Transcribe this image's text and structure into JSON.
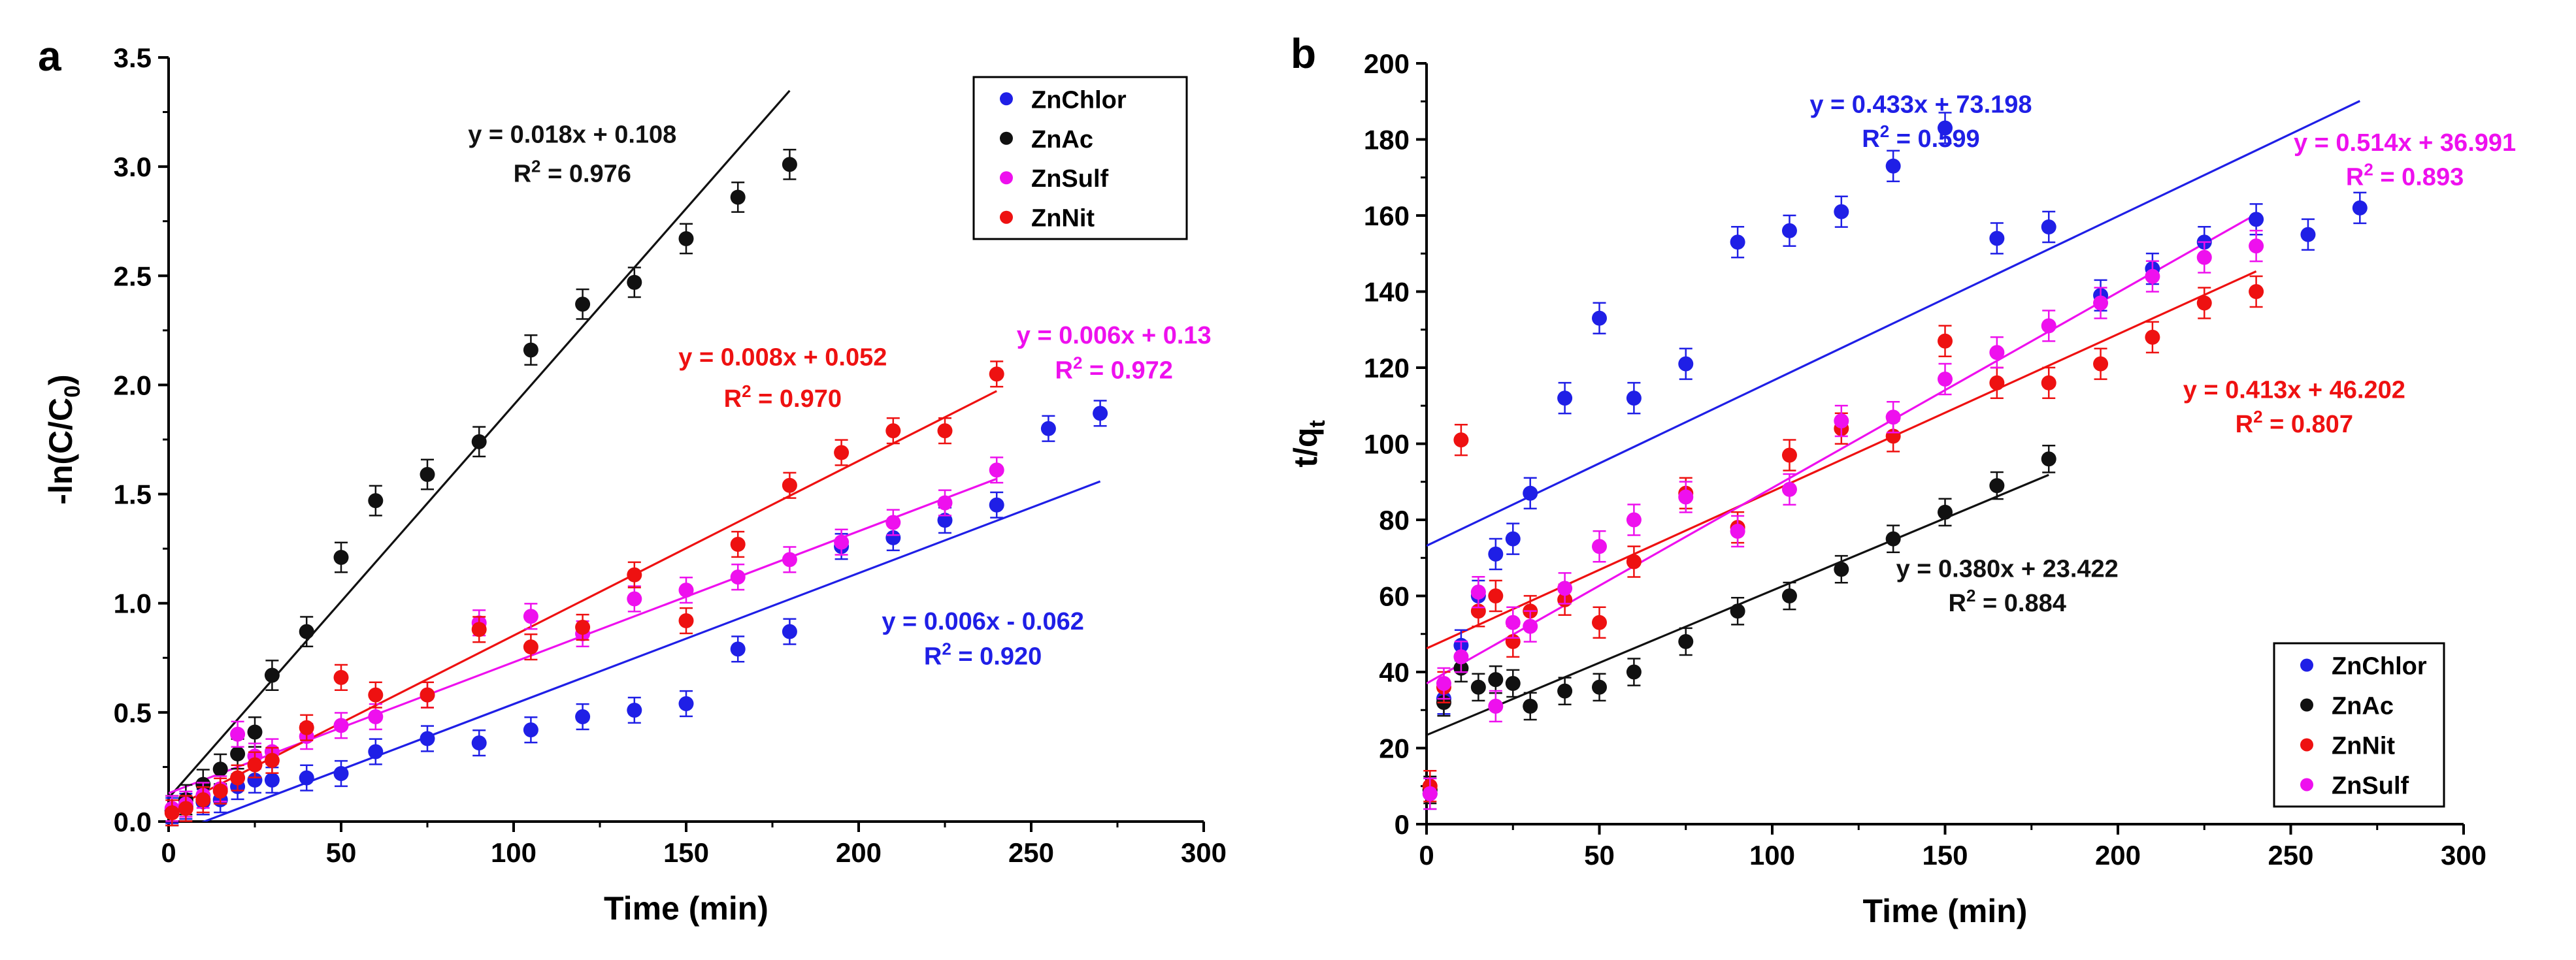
{
  "chart_data": [
    {
      "panel_label": "a",
      "type": "scatter",
      "xlabel": "Time (min)",
      "ylabel_main": "-ln(C/C",
      "ylabel_sub": "0",
      "ylabel_close": ")",
      "xlim": [
        0,
        300
      ],
      "ylim": [
        0,
        3.5
      ],
      "xticks": [
        0,
        50,
        100,
        150,
        200,
        250,
        300
      ],
      "yticks": [
        0,
        0.5,
        1,
        1.5,
        2,
        2.5,
        3,
        3.5
      ],
      "ytick_labels": [
        "0.0",
        "0.5",
        "1.0",
        "1.5",
        "2.0",
        "2.5",
        "3.0",
        "3.5"
      ],
      "legend_position": "top-right",
      "legend_order": [
        "ZnChlor",
        "ZnAc",
        "ZnSulf",
        "ZnNit"
      ],
      "series": [
        {
          "name": "ZnChlor",
          "color": "#1f1fe6",
          "err": 0.04,
          "x": [
            1,
            5,
            10,
            15,
            20,
            25,
            30,
            40,
            50,
            60,
            75,
            90,
            105,
            120,
            135,
            150,
            165,
            180,
            195,
            210,
            225,
            240,
            255,
            270
          ],
          "y": [
            0.05,
            0.07,
            0.09,
            0.1,
            0.16,
            0.19,
            0.19,
            0.2,
            0.22,
            0.32,
            0.38,
            0.36,
            0.42,
            0.48,
            0.51,
            0.54,
            0.79,
            0.87,
            1.26,
            1.3,
            1.38,
            1.45,
            1.8,
            1.87
          ],
          "fit": {
            "slope": 0.006,
            "intercept": -0.062,
            "x": [
              0,
              270
            ]
          },
          "eq": "y = 0.006x - 0.062",
          "r2": "= 0.920",
          "eq_pos": [
            236,
            0.88
          ],
          "r2_pos": [
            236,
            0.72
          ]
        },
        {
          "name": "ZnAc",
          "color": "#111111",
          "err": 0.05,
          "x": [
            1,
            5,
            10,
            15,
            20,
            25,
            30,
            40,
            50,
            60,
            75,
            90,
            105,
            120,
            135,
            150,
            165,
            180
          ],
          "y": [
            0.05,
            0.1,
            0.17,
            0.24,
            0.31,
            0.41,
            0.67,
            0.87,
            1.21,
            1.47,
            1.59,
            1.74,
            2.16,
            2.37,
            2.47,
            2.67,
            2.86,
            3.01
          ],
          "fit": {
            "slope": 0.018,
            "intercept": 0.108,
            "x": [
              0,
              180
            ]
          },
          "eq": "y = 0.018x + 0.108",
          "r2": "= 0.976",
          "eq_pos": [
            117,
            3.11
          ],
          "r2_pos": [
            117,
            2.93
          ]
        },
        {
          "name": "ZnSulf",
          "color": "#ee10ee",
          "err": 0.04,
          "x": [
            1,
            5,
            10,
            15,
            20,
            25,
            30,
            40,
            50,
            60,
            75,
            90,
            105,
            120,
            135,
            150,
            165,
            180,
            195,
            210,
            225,
            240
          ],
          "y": [
            0.06,
            0.08,
            0.12,
            0.15,
            0.4,
            0.3,
            0.32,
            0.39,
            0.44,
            0.48,
            0.58,
            0.91,
            0.94,
            0.86,
            1.02,
            1.06,
            1.12,
            1.2,
            1.28,
            1.37,
            1.46,
            1.61
          ],
          "fit": {
            "slope": 0.006,
            "intercept": 0.13,
            "x": [
              0,
              240
            ]
          },
          "eq": "y = 0.006x + 0.13",
          "r2": "= 0.972",
          "eq_pos": [
            274,
            2.19
          ],
          "r2_pos": [
            274,
            2.03
          ]
        },
        {
          "name": "ZnNit",
          "color": "#ee1111",
          "err": 0.04,
          "x": [
            1,
            5,
            10,
            15,
            20,
            25,
            30,
            40,
            50,
            60,
            75,
            90,
            105,
            120,
            135,
            150,
            165,
            180,
            195,
            210,
            225,
            240
          ],
          "y": [
            0.04,
            0.06,
            0.1,
            0.14,
            0.2,
            0.26,
            0.28,
            0.43,
            0.66,
            0.58,
            0.58,
            0.88,
            0.8,
            0.89,
            1.13,
            0.92,
            1.27,
            1.54,
            1.69,
            1.79,
            1.79,
            2.05
          ],
          "fit": {
            "slope": 0.008,
            "intercept": 0.052,
            "x": [
              0,
              240
            ]
          },
          "eq": "y = 0.008x + 0.052",
          "r2": "= 0.970",
          "eq_pos": [
            178,
            2.09
          ],
          "r2_pos": [
            178,
            1.9
          ]
        }
      ]
    },
    {
      "panel_label": "b",
      "type": "scatter",
      "xlabel": "Time (min)",
      "ylabel_main": "t/q",
      "ylabel_sub": "t",
      "ylabel_close": "",
      "xlim": [
        0,
        300
      ],
      "ylim": [
        0,
        200
      ],
      "xticks": [
        0,
        50,
        100,
        150,
        200,
        250,
        300
      ],
      "yticks": [
        0,
        20,
        40,
        60,
        80,
        100,
        120,
        140,
        160,
        180,
        200
      ],
      "ytick_labels": [
        "0",
        "20",
        "40",
        "60",
        "80",
        "100",
        "120",
        "140",
        "160",
        "180",
        "200"
      ],
      "legend_position": "bottom-right",
      "legend_order": [
        "ZnChlor",
        "ZnAc",
        "ZnNit",
        "ZnSulf"
      ],
      "series": [
        {
          "name": "ZnChlor",
          "color": "#1f1fe6",
          "err": 3,
          "x": [
            1,
            5,
            10,
            15,
            20,
            25,
            30,
            40,
            50,
            60,
            75,
            90,
            105,
            120,
            135,
            150,
            165,
            180,
            195,
            210,
            225,
            240,
            255,
            270
          ],
          "y": [
            8,
            33,
            47,
            60,
            71,
            75,
            87,
            112,
            133,
            112,
            121,
            153,
            156,
            161,
            173,
            183,
            154,
            157,
            139,
            146,
            153,
            159,
            155,
            162
          ],
          "fit": {
            "slope": 0.433,
            "intercept": 73.198,
            "x": [
              0,
              270
            ]
          },
          "eq": "y = 0.433x + 73.198",
          "r2": "= 0.599",
          "eq_pos": [
            143,
            187
          ],
          "r2_pos": [
            143,
            178
          ]
        },
        {
          "name": "ZnAc",
          "color": "#111111",
          "err": 2.5,
          "x": [
            1,
            5,
            10,
            15,
            20,
            25,
            30,
            40,
            50,
            60,
            75,
            90,
            105,
            120,
            135,
            150,
            165,
            180
          ],
          "y": [
            9,
            32,
            41,
            36,
            38,
            37,
            31,
            35,
            36,
            40,
            48,
            56,
            60,
            67,
            75,
            82,
            89,
            96
          ],
          "fit": {
            "slope": 0.38,
            "intercept": 23.422,
            "x": [
              0,
              180
            ]
          },
          "eq": "y = 0.380x + 23.422",
          "r2": "= 0.884",
          "eq_pos": [
            168,
            65
          ],
          "r2_pos": [
            168,
            56
          ]
        },
        {
          "name": "ZnNit",
          "color": "#ee1111",
          "err": 3,
          "x": [
            1,
            5,
            10,
            15,
            20,
            25,
            30,
            40,
            50,
            60,
            75,
            90,
            105,
            120,
            135,
            150,
            165,
            180,
            195,
            210,
            225,
            240
          ],
          "y": [
            10,
            36,
            101,
            56,
            60,
            48,
            56,
            59,
            53,
            69,
            87,
            78,
            97,
            104,
            102,
            127,
            116,
            116,
            121,
            128,
            137,
            140
          ],
          "fit": {
            "slope": 0.413,
            "intercept": 46.202,
            "x": [
              0,
              240
            ]
          },
          "eq": "y = 0.413x + 46.202",
          "r2": "= 0.807",
          "eq_pos": [
            251,
            112
          ],
          "r2_pos": [
            251,
            103
          ]
        },
        {
          "name": "ZnSulf",
          "color": "#ee10ee",
          "err": 3,
          "x": [
            1,
            5,
            10,
            15,
            20,
            25,
            30,
            40,
            50,
            60,
            75,
            90,
            105,
            120,
            135,
            150,
            165,
            180,
            195,
            210,
            225,
            240
          ],
          "y": [
            8,
            37,
            44,
            61,
            31,
            53,
            52,
            62,
            73,
            80,
            86,
            77,
            88,
            106,
            107,
            117,
            124,
            131,
            137,
            144,
            149,
            152
          ],
          "fit": {
            "slope": 0.514,
            "intercept": 36.991,
            "x": [
              0,
              240
            ]
          },
          "eq": "y = 0.514x + 36.991",
          "r2": "= 0.893",
          "eq_pos": [
            283,
            177
          ],
          "r2_pos": [
            283,
            168
          ]
        }
      ]
    }
  ]
}
